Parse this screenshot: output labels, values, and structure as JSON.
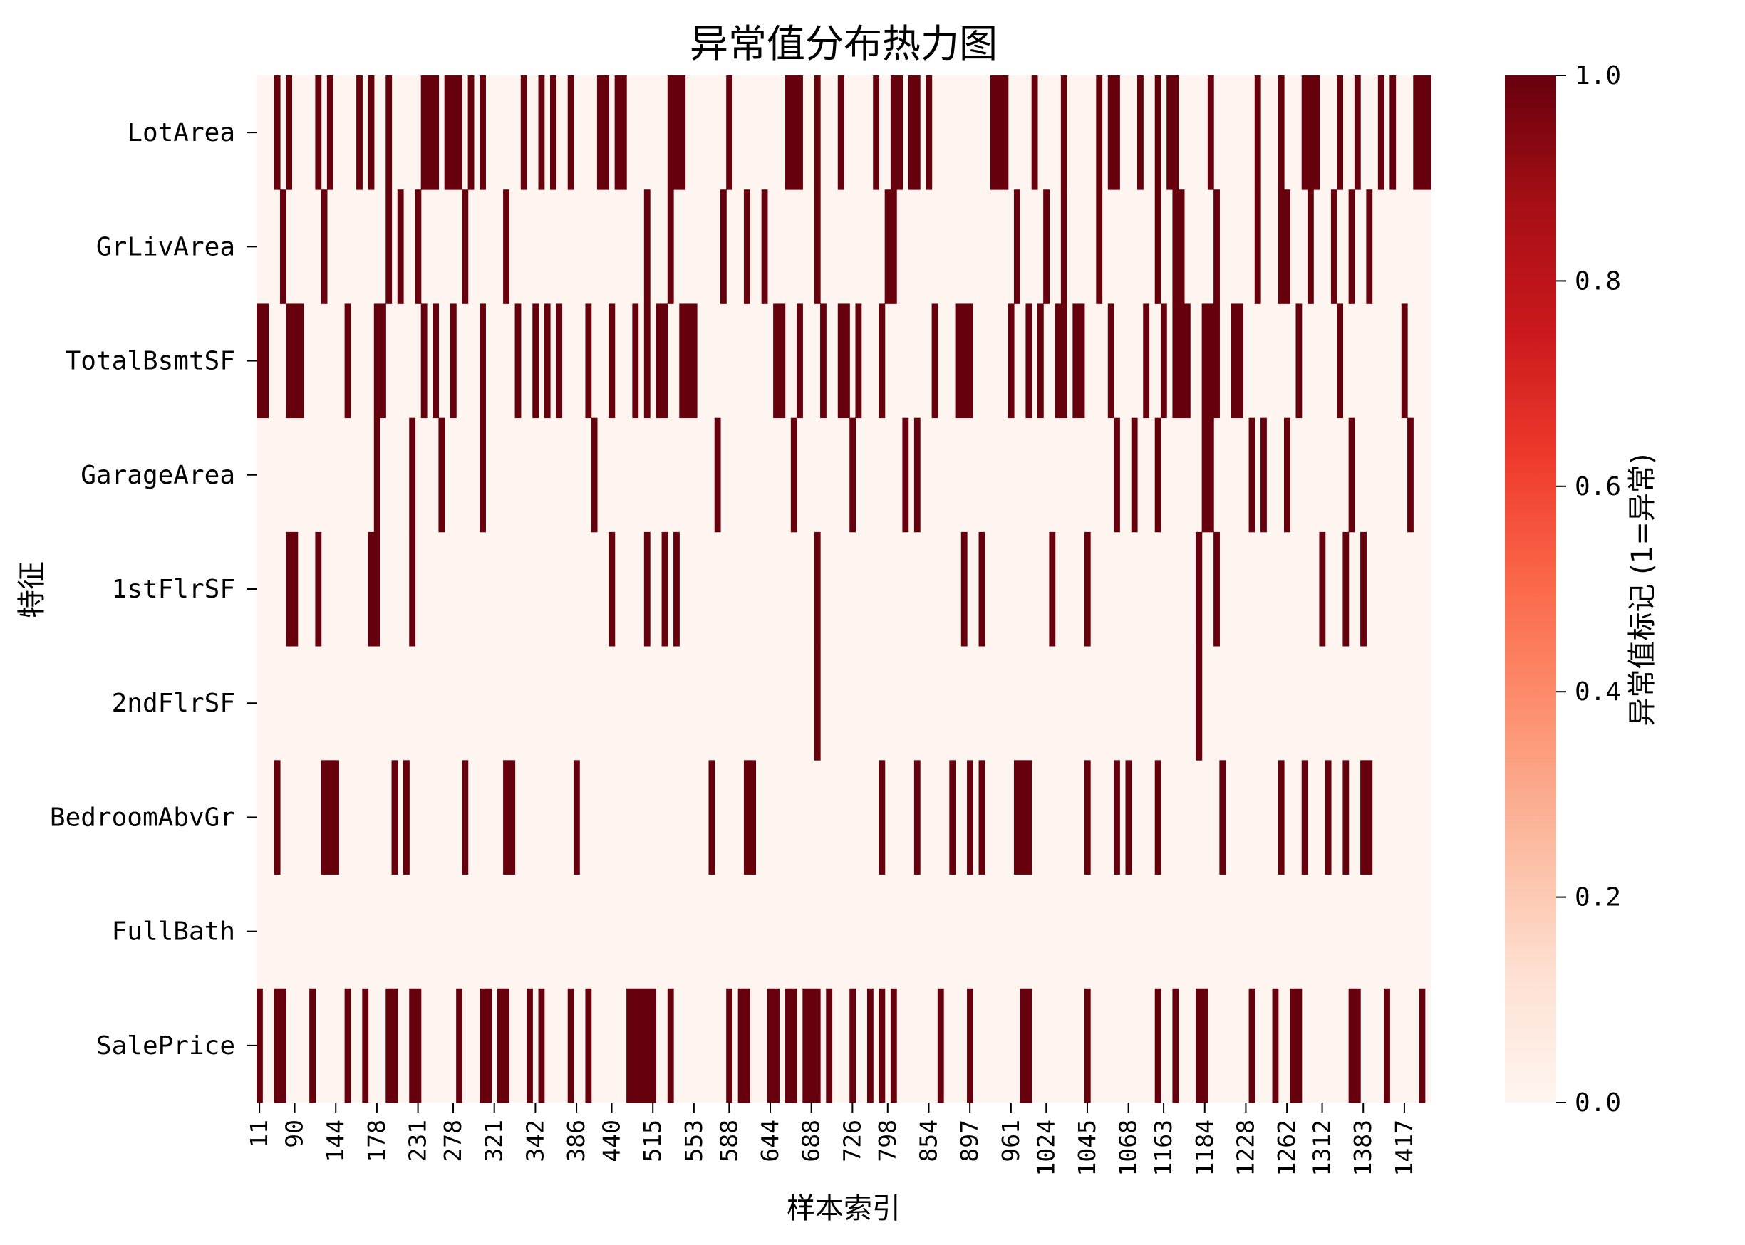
{
  "chart_data": {
    "type": "heatmap",
    "title": "异常值分布热力图",
    "xlabel": "样本索引",
    "ylabel": "特征",
    "colorbar_label": "异常值标记 (1=异常)",
    "colormap": "Reds",
    "color_low": "#fff5f0",
    "color_high": "#67000d",
    "vmin": 0.0,
    "vmax": 1.0,
    "colorbar_ticks": [
      "0.0",
      "0.2",
      "0.4",
      "0.6",
      "0.8",
      "1.0"
    ],
    "n_samples": 200,
    "x_tick_labels": [
      "11",
      "90",
      "144",
      "178",
      "231",
      "278",
      "321",
      "342",
      "386",
      "440",
      "515",
      "553",
      "588",
      "644",
      "688",
      "726",
      "798",
      "854",
      "897",
      "961",
      "1024",
      "1045",
      "1068",
      "1163",
      "1184",
      "1228",
      "1262",
      "1312",
      "1383",
      "1417"
    ],
    "x_tick_positions": [
      0,
      6,
      13,
      20,
      27,
      33,
      40,
      47,
      54,
      60,
      67,
      74,
      80,
      87,
      94,
      101,
      107,
      114,
      121,
      128,
      134,
      141,
      148,
      154,
      161,
      168,
      175,
      181,
      188,
      195
    ],
    "rows": [
      {
        "feature": "LotArea",
        "anomaly_indices": [
          3,
          5,
          10,
          12,
          17,
          19,
          22,
          28,
          29,
          30,
          32,
          33,
          34,
          36,
          38,
          45,
          48,
          50,
          53,
          58,
          59,
          61,
          62,
          70,
          71,
          72,
          80,
          90,
          91,
          92,
          95,
          99,
          105,
          108,
          109,
          111,
          112,
          114,
          125,
          126,
          127,
          132,
          137,
          143,
          145,
          146,
          150,
          153,
          155,
          156,
          162,
          170,
          174,
          178,
          179,
          180,
          184,
          187,
          191,
          193,
          197,
          198,
          199
        ]
      },
      {
        "feature": "GrLivArea",
        "anomaly_indices": [
          4,
          11,
          22,
          24,
          27,
          35,
          42,
          66,
          70,
          79,
          83,
          86,
          95,
          107,
          108,
          129,
          134,
          137,
          143,
          153,
          156,
          157,
          163,
          170,
          174,
          175,
          179,
          183,
          186,
          189
        ]
      },
      {
        "feature": "TotalBsmtSF",
        "anomaly_indices": [
          0,
          1,
          5,
          6,
          7,
          15,
          20,
          21,
          28,
          30,
          33,
          38,
          44,
          47,
          49,
          51,
          56,
          60,
          64,
          66,
          68,
          69,
          72,
          73,
          74,
          88,
          89,
          92,
          96,
          99,
          100,
          102,
          106,
          115,
          119,
          120,
          121,
          128,
          131,
          133,
          136,
          137,
          139,
          140,
          145,
          151,
          154,
          156,
          157,
          158,
          161,
          162,
          163,
          166,
          167,
          177,
          184,
          195
        ]
      },
      {
        "feature": "GarageArea",
        "anomaly_indices": [
          20,
          26,
          31,
          38,
          57,
          78,
          91,
          101,
          110,
          112,
          146,
          149,
          153,
          161,
          162,
          169,
          171,
          175,
          186,
          196
        ]
      },
      {
        "feature": "1stFlrSF",
        "anomaly_indices": [
          5,
          6,
          10,
          19,
          20,
          26,
          60,
          66,
          69,
          71,
          95,
          120,
          123,
          135,
          141,
          160,
          163,
          181,
          185,
          188
        ]
      },
      {
        "feature": "2ndFlrSF",
        "anomaly_indices": [
          95,
          160
        ]
      },
      {
        "feature": "BedroomAbvGr",
        "anomaly_indices": [
          3,
          11,
          12,
          13,
          23,
          25,
          35,
          42,
          43,
          54,
          77,
          83,
          84,
          106,
          112,
          118,
          121,
          123,
          129,
          130,
          131,
          141,
          146,
          148,
          153,
          164,
          174,
          178,
          182,
          185,
          188,
          189
        ]
      },
      {
        "feature": "FullBath",
        "anomaly_indices": []
      },
      {
        "feature": "SalePrice",
        "anomaly_indices": [
          0,
          3,
          4,
          9,
          15,
          18,
          22,
          23,
          26,
          27,
          34,
          38,
          39,
          41,
          42,
          46,
          48,
          53,
          56,
          63,
          64,
          65,
          66,
          67,
          70,
          80,
          82,
          83,
          87,
          88,
          90,
          91,
          93,
          94,
          95,
          97,
          101,
          104,
          106,
          108,
          116,
          121,
          130,
          131,
          141,
          153,
          156,
          160,
          161,
          169,
          173,
          176,
          177,
          186,
          187,
          192,
          198
        ]
      }
    ]
  }
}
